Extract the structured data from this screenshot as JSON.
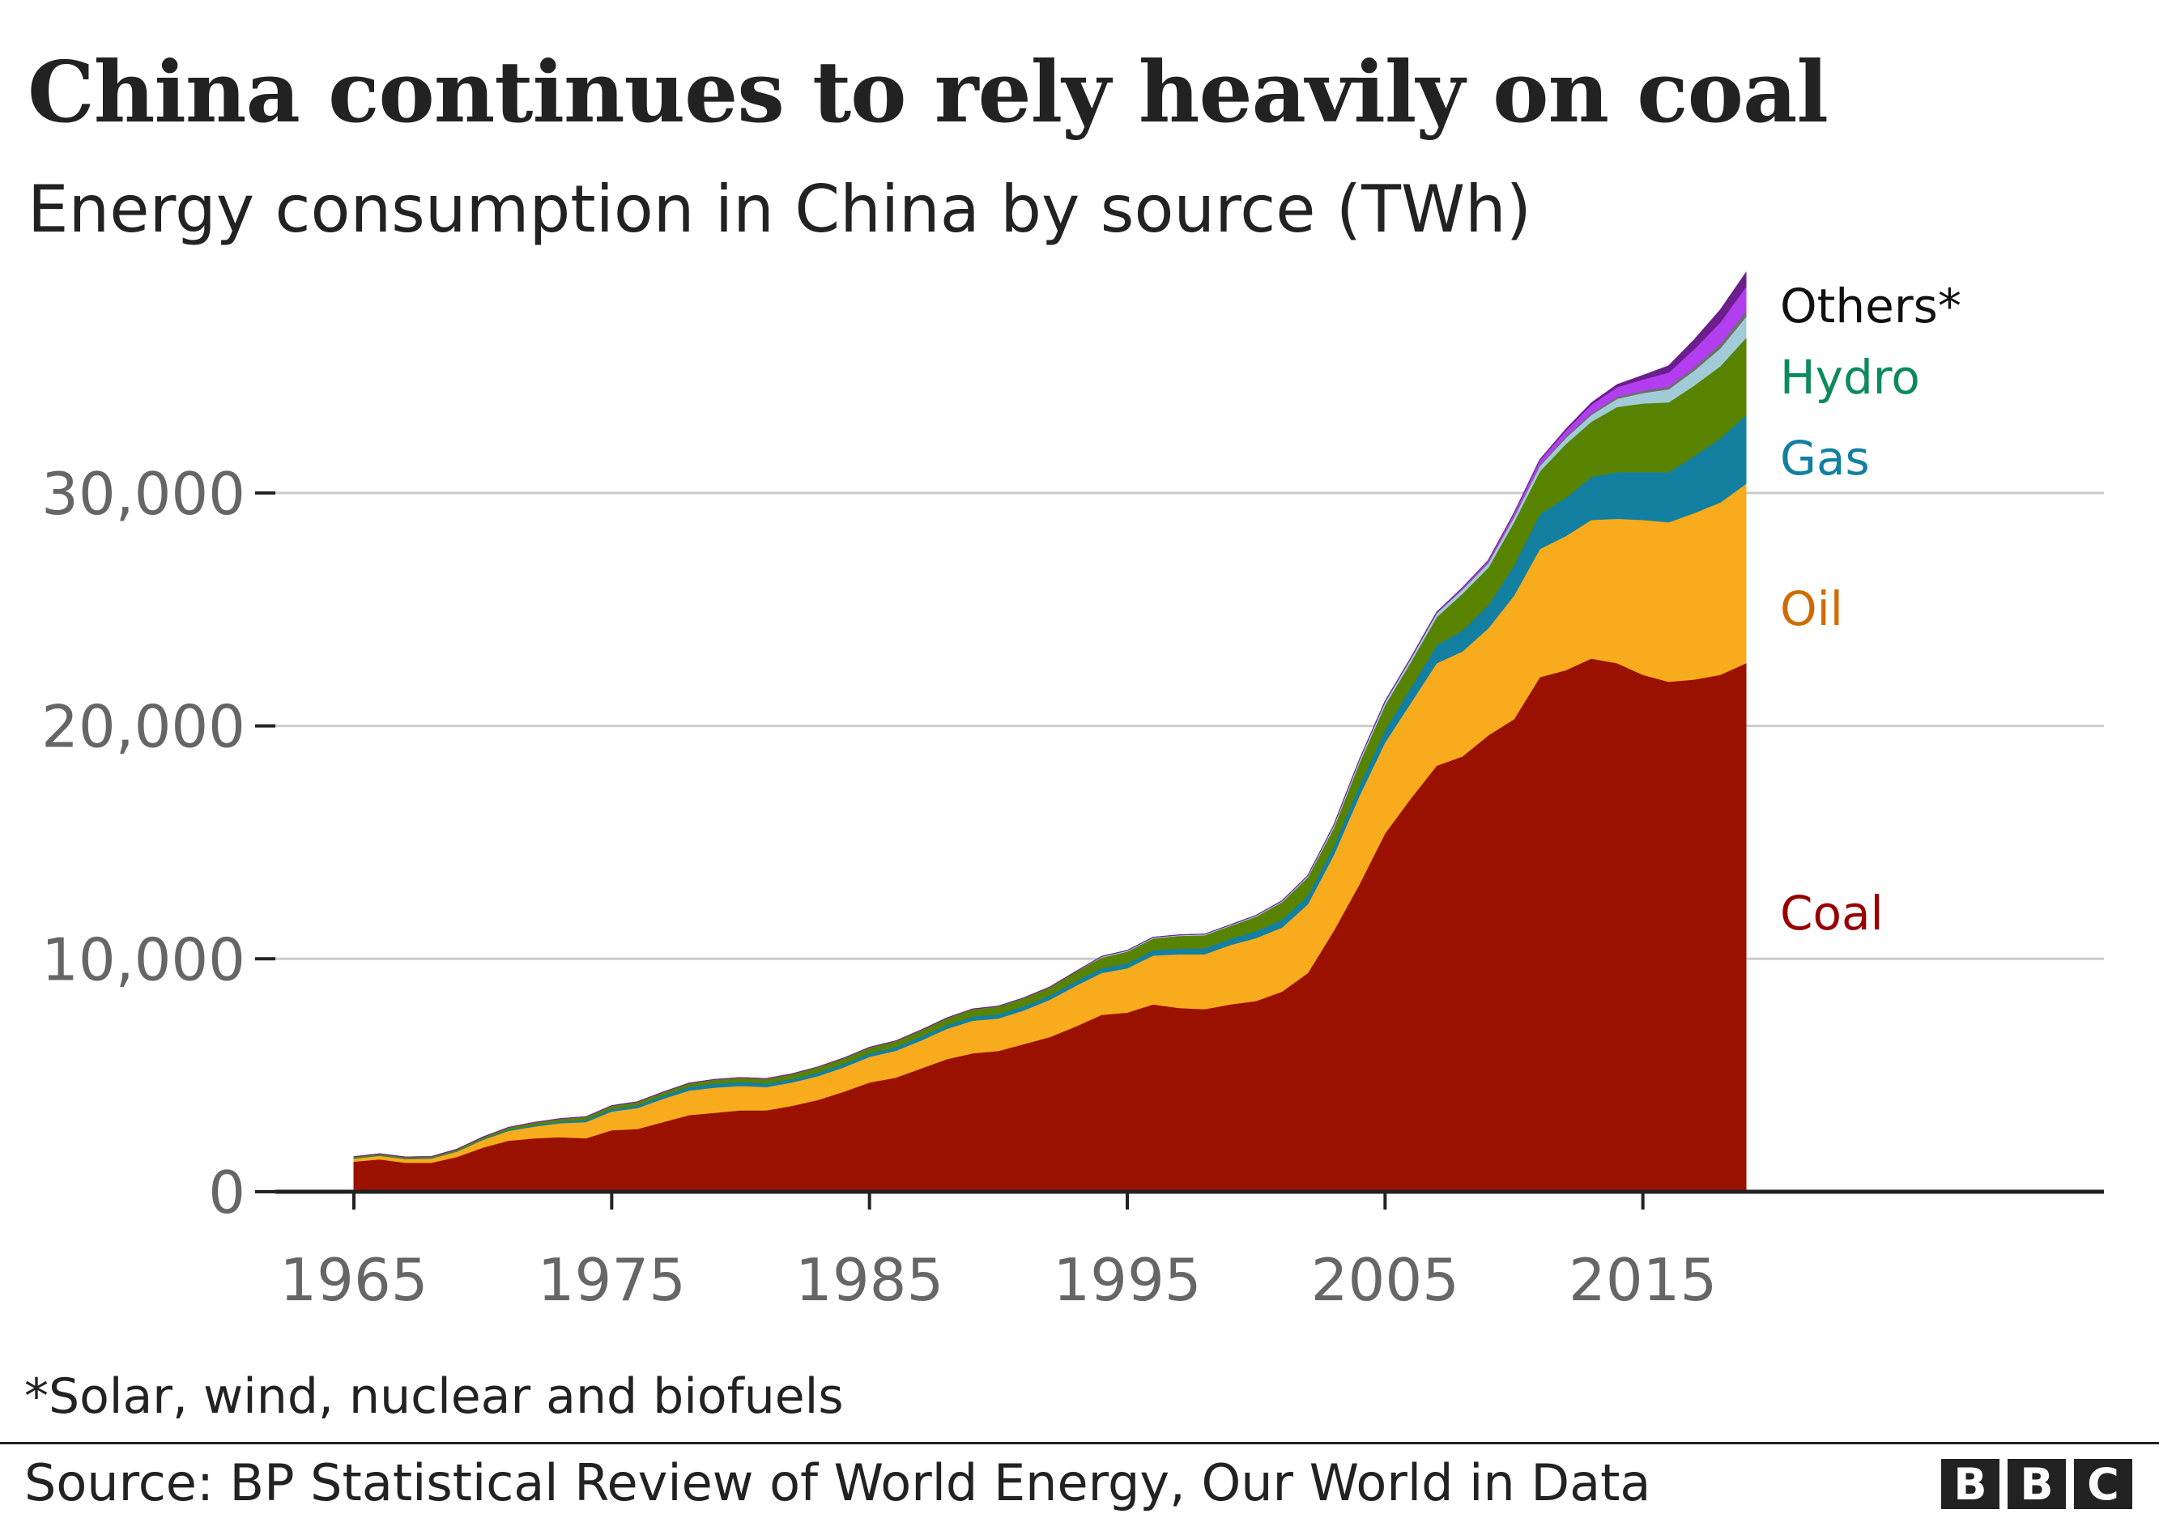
{
  "chart_data": {
    "type": "area",
    "stacked": true,
    "title": "China continues to rely heavily on coal",
    "subtitle": "Energy consumption in China by source (TWh)",
    "xlabel": "",
    "ylabel": "",
    "xlim": [
      1965,
      2019
    ],
    "ylim": [
      0,
      40000
    ],
    "grid": true,
    "x_ticks": [
      "1965",
      "1975",
      "1985",
      "1995",
      "2005",
      "2015"
    ],
    "x_tick_values": [
      1965,
      1975,
      1985,
      1995,
      2005,
      2015
    ],
    "y_ticks": [
      "0",
      "10,000",
      "20,000",
      "30,000"
    ],
    "y_tick_values": [
      0,
      10000,
      20000,
      30000
    ],
    "x_start": 1965,
    "series": [
      {
        "name": "Coal",
        "color": "#9b1100",
        "label_color": "#990000",
        "label": "Coal",
        "values": [
          1300,
          1400,
          1250,
          1250,
          1500,
          1900,
          2200,
          2300,
          2350,
          2300,
          2650,
          2700,
          3000,
          3300,
          3400,
          3500,
          3500,
          3700,
          3950,
          4300,
          4700,
          4900,
          5300,
          5700,
          5950,
          6050,
          6350,
          6650,
          7100,
          7600,
          7700,
          8050,
          7900,
          7850,
          8050,
          8200,
          8600,
          9400,
          11200,
          13200,
          15400,
          16900,
          18300,
          18700,
          19600,
          20300,
          22100,
          22400,
          22900,
          22700,
          22200,
          21900,
          22000,
          22200,
          22700
        ]
      },
      {
        "name": "Oil",
        "color": "#f8ab1c",
        "label_color": "#d16b00",
        "label": "Oil",
        "values": [
          130,
          150,
          160,
          180,
          230,
          330,
          420,
          510,
          600,
          700,
          800,
          900,
          1000,
          1050,
          1080,
          1050,
          1000,
          1000,
          1020,
          1050,
          1100,
          1150,
          1200,
          1300,
          1400,
          1400,
          1450,
          1600,
          1750,
          1800,
          1900,
          2100,
          2300,
          2350,
          2550,
          2700,
          2750,
          2950,
          3250,
          3800,
          3900,
          4100,
          4400,
          4500,
          4600,
          5300,
          5500,
          5750,
          5950,
          6200,
          6650,
          6850,
          7150,
          7400,
          7700
        ]
      },
      {
        "name": "Gas",
        "color": "#1380a1",
        "label_color": "#1380a1",
        "label": "Gas",
        "values": [
          15,
          20,
          20,
          20,
          25,
          35,
          45,
          55,
          70,
          90,
          105,
          120,
          140,
          160,
          170,
          170,
          160,
          150,
          150,
          150,
          150,
          160,
          170,
          170,
          180,
          180,
          190,
          190,
          200,
          210,
          210,
          230,
          250,
          260,
          270,
          300,
          340,
          370,
          400,
          460,
          550,
          660,
          780,
          900,
          1000,
          1300,
          1500,
          1650,
          1850,
          2000,
          2050,
          2150,
          2450,
          2750,
          2950
        ]
      },
      {
        "name": "Hydro",
        "color": "#588300",
        "label_color": "#0d8a5c",
        "label": "Hydro",
        "values": [
          60,
          60,
          60,
          60,
          70,
          80,
          100,
          110,
          120,
          130,
          140,
          140,
          140,
          150,
          170,
          180,
          200,
          210,
          240,
          240,
          250,
          260,
          270,
          290,
          320,
          340,
          340,
          350,
          400,
          450,
          510,
          500,
          540,
          560,
          550,
          620,
          750,
          780,
          760,
          950,
          1050,
          1100,
          1200,
          1580,
          1600,
          1860,
          1830,
          2300,
          2370,
          2800,
          2950,
          3000,
          3030,
          3100,
          3320
        ]
      },
      {
        "name": "Others - nuclear",
        "color": "#a2cbd8",
        "values": [
          0,
          0,
          0,
          0,
          0,
          0,
          0,
          0,
          0,
          0,
          0,
          0,
          0,
          0,
          0,
          0,
          0,
          0,
          0,
          0,
          0,
          0,
          0,
          0,
          0,
          0,
          0,
          0,
          0,
          40,
          40,
          40,
          40,
          40,
          40,
          45,
          50,
          70,
          110,
          130,
          140,
          140,
          160,
          180,
          190,
          200,
          230,
          260,
          290,
          350,
          450,
          560,
          640,
          760,
          900
        ]
      },
      {
        "name": "Others - biofuels",
        "color": "#6e6e6e",
        "values": [
          0,
          0,
          0,
          0,
          0,
          0,
          0,
          0,
          0,
          0,
          0,
          0,
          0,
          0,
          0,
          0,
          0,
          0,
          0,
          0,
          0,
          0,
          0,
          0,
          0,
          0,
          0,
          0,
          0,
          0,
          0,
          0,
          0,
          0,
          0,
          0,
          0,
          0,
          0,
          0,
          10,
          15,
          20,
          30,
          40,
          50,
          60,
          70,
          80,
          90,
          100,
          110,
          150,
          200,
          250
        ]
      },
      {
        "name": "Others - wind",
        "color": "#b23ef0",
        "values": [
          0,
          0,
          0,
          0,
          0,
          0,
          0,
          0,
          0,
          0,
          0,
          0,
          0,
          0,
          0,
          0,
          0,
          0,
          0,
          0,
          0,
          0,
          0,
          0,
          0,
          0,
          0,
          0,
          0,
          0,
          0,
          0,
          0,
          0,
          0,
          0,
          0,
          0,
          0,
          0,
          5,
          10,
          20,
          40,
          70,
          120,
          190,
          250,
          360,
          410,
          480,
          610,
          770,
          920,
          1040
        ]
      },
      {
        "name": "Others - solar",
        "color": "#6b1f8c",
        "values": [
          0,
          0,
          0,
          0,
          0,
          0,
          0,
          0,
          0,
          0,
          0,
          0,
          0,
          0,
          0,
          0,
          0,
          0,
          0,
          0,
          0,
          0,
          0,
          0,
          0,
          0,
          0,
          0,
          0,
          0,
          0,
          0,
          0,
          0,
          0,
          0,
          0,
          0,
          0,
          0,
          0,
          0,
          0,
          0,
          0,
          5,
          20,
          40,
          70,
          100,
          170,
          280,
          400,
          530,
          600
        ]
      }
    ],
    "direct_labels": {
      "others": "Others*",
      "hydro": "Hydro",
      "gas": "Gas",
      "oil": "Oil",
      "coal": "Coal"
    }
  },
  "footnote": "*Solar, wind, nuclear and biofuels",
  "source": "Source: BP Statistical Review of World Energy, Our World in Data",
  "logo": [
    "B",
    "B",
    "C"
  ]
}
